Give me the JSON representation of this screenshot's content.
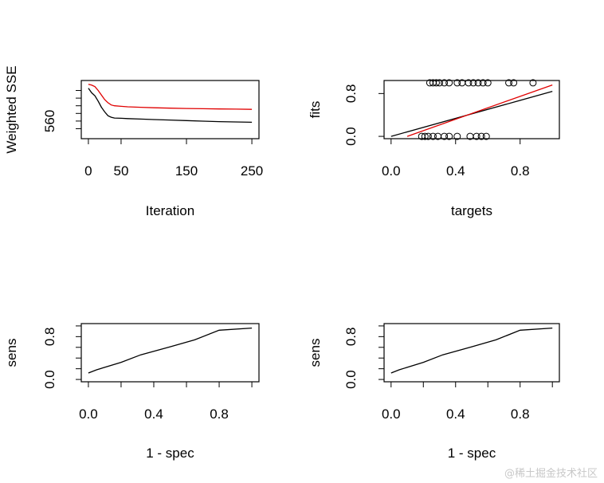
{
  "chart_data": [
    {
      "type": "line",
      "title": "",
      "xlabel": "Iteration",
      "ylabel": "Weighted SSE",
      "xlim": [
        0,
        250
      ],
      "ylim": [
        540,
        610
      ],
      "xticks": [
        0,
        50,
        150,
        250
      ],
      "xtick_labels": [
        "0",
        "50",
        "150",
        "250"
      ],
      "yticks": [
        550,
        560,
        570,
        580,
        590,
        600
      ],
      "ytick_labels": [
        "",
        "560",
        "",
        "",
        "",
        ""
      ],
      "series": [
        {
          "name": "red",
          "color": "#e00000",
          "x": [
            0,
            5,
            10,
            15,
            20,
            25,
            30,
            35,
            40,
            50,
            60,
            80,
            100,
            125,
            150,
            175,
            200,
            225,
            250
          ],
          "y": [
            608,
            607,
            605,
            600,
            594,
            588,
            584,
            581,
            580,
            579.3,
            578.7,
            578,
            577.4,
            576.9,
            576.5,
            576.1,
            575.8,
            575.6,
            575.3
          ]
        },
        {
          "name": "black",
          "color": "#000000",
          "x": [
            0,
            5,
            10,
            15,
            20,
            25,
            30,
            35,
            40,
            50,
            60,
            80,
            100,
            125,
            150,
            175,
            200,
            225,
            250
          ],
          "y": [
            603,
            597,
            593,
            586,
            578,
            572,
            567,
            565,
            564,
            563.6,
            563.2,
            562.6,
            562,
            561.3,
            560.6,
            559.9,
            559.3,
            558.8,
            558.4
          ]
        }
      ]
    },
    {
      "type": "scatter",
      "title": "",
      "xlabel": "targets",
      "ylabel": "fits",
      "xlim": [
        0,
        1
      ],
      "ylim": [
        0,
        1
      ],
      "xticks": [
        0,
        0.4,
        0.8
      ],
      "xtick_labels": [
        "0.0",
        "0.4",
        "0.8"
      ],
      "yticks": [
        0,
        0.8
      ],
      "ytick_labels": [
        "0.0",
        "0.8"
      ],
      "points_top": [
        0.24,
        0.26,
        0.28,
        0.3,
        0.33,
        0.36,
        0.41,
        0.44,
        0.48,
        0.51,
        0.54,
        0.57,
        0.6,
        0.73,
        0.76,
        0.88
      ],
      "points_bottom": [
        0.19,
        0.21,
        0.23,
        0.26,
        0.29,
        0.33,
        0.36,
        0.41,
        0.49,
        0.53,
        0.56,
        0.59
      ],
      "lines": [
        {
          "name": "black",
          "color": "#000000",
          "x": [
            0,
            1
          ],
          "y": [
            0,
            0.84
          ]
        },
        {
          "name": "red",
          "color": "#e00000",
          "x": [
            0.1,
            1
          ],
          "y": [
            0,
            0.96
          ]
        }
      ]
    },
    {
      "type": "line",
      "title": "",
      "xlabel": "1 - spec",
      "ylabel": "sens",
      "xlim": [
        0,
        1
      ],
      "ylim": [
        0,
        1
      ],
      "xticks": [
        0,
        0.2,
        0.4,
        0.6,
        0.8,
        1.0
      ],
      "xtick_labels": [
        "0.0",
        "",
        "0.4",
        "",
        "0.8",
        ""
      ],
      "yticks": [
        0,
        0.2,
        0.4,
        0.6,
        0.8,
        1.0
      ],
      "ytick_labels": [
        "0.0",
        "",
        "",
        "",
        "0.8",
        ""
      ],
      "series": [
        {
          "name": "roc",
          "color": "#000000",
          "x": [
            0,
            0.05,
            0.2,
            0.32,
            0.5,
            0.65,
            0.8,
            1.0
          ],
          "y": [
            0.12,
            0.18,
            0.32,
            0.46,
            0.61,
            0.74,
            0.92,
            0.96
          ]
        }
      ]
    },
    {
      "type": "line",
      "title": "",
      "xlabel": "1 - spec",
      "ylabel": "sens",
      "xlim": [
        0,
        1
      ],
      "ylim": [
        0,
        1
      ],
      "xticks": [
        0,
        0.2,
        0.4,
        0.6,
        0.8,
        1.0
      ],
      "xtick_labels": [
        "0.0",
        "",
        "0.4",
        "",
        "0.8",
        ""
      ],
      "yticks": [
        0,
        0.2,
        0.4,
        0.6,
        0.8,
        1.0
      ],
      "ytick_labels": [
        "0.0",
        "",
        "",
        "",
        "0.8",
        ""
      ],
      "series": [
        {
          "name": "roc",
          "color": "#000000",
          "x": [
            0,
            0.05,
            0.2,
            0.32,
            0.5,
            0.65,
            0.8,
            1.0
          ],
          "y": [
            0.12,
            0.18,
            0.32,
            0.46,
            0.61,
            0.74,
            0.92,
            0.96
          ]
        }
      ]
    }
  ],
  "watermark": "@稀土掘金技术社区"
}
